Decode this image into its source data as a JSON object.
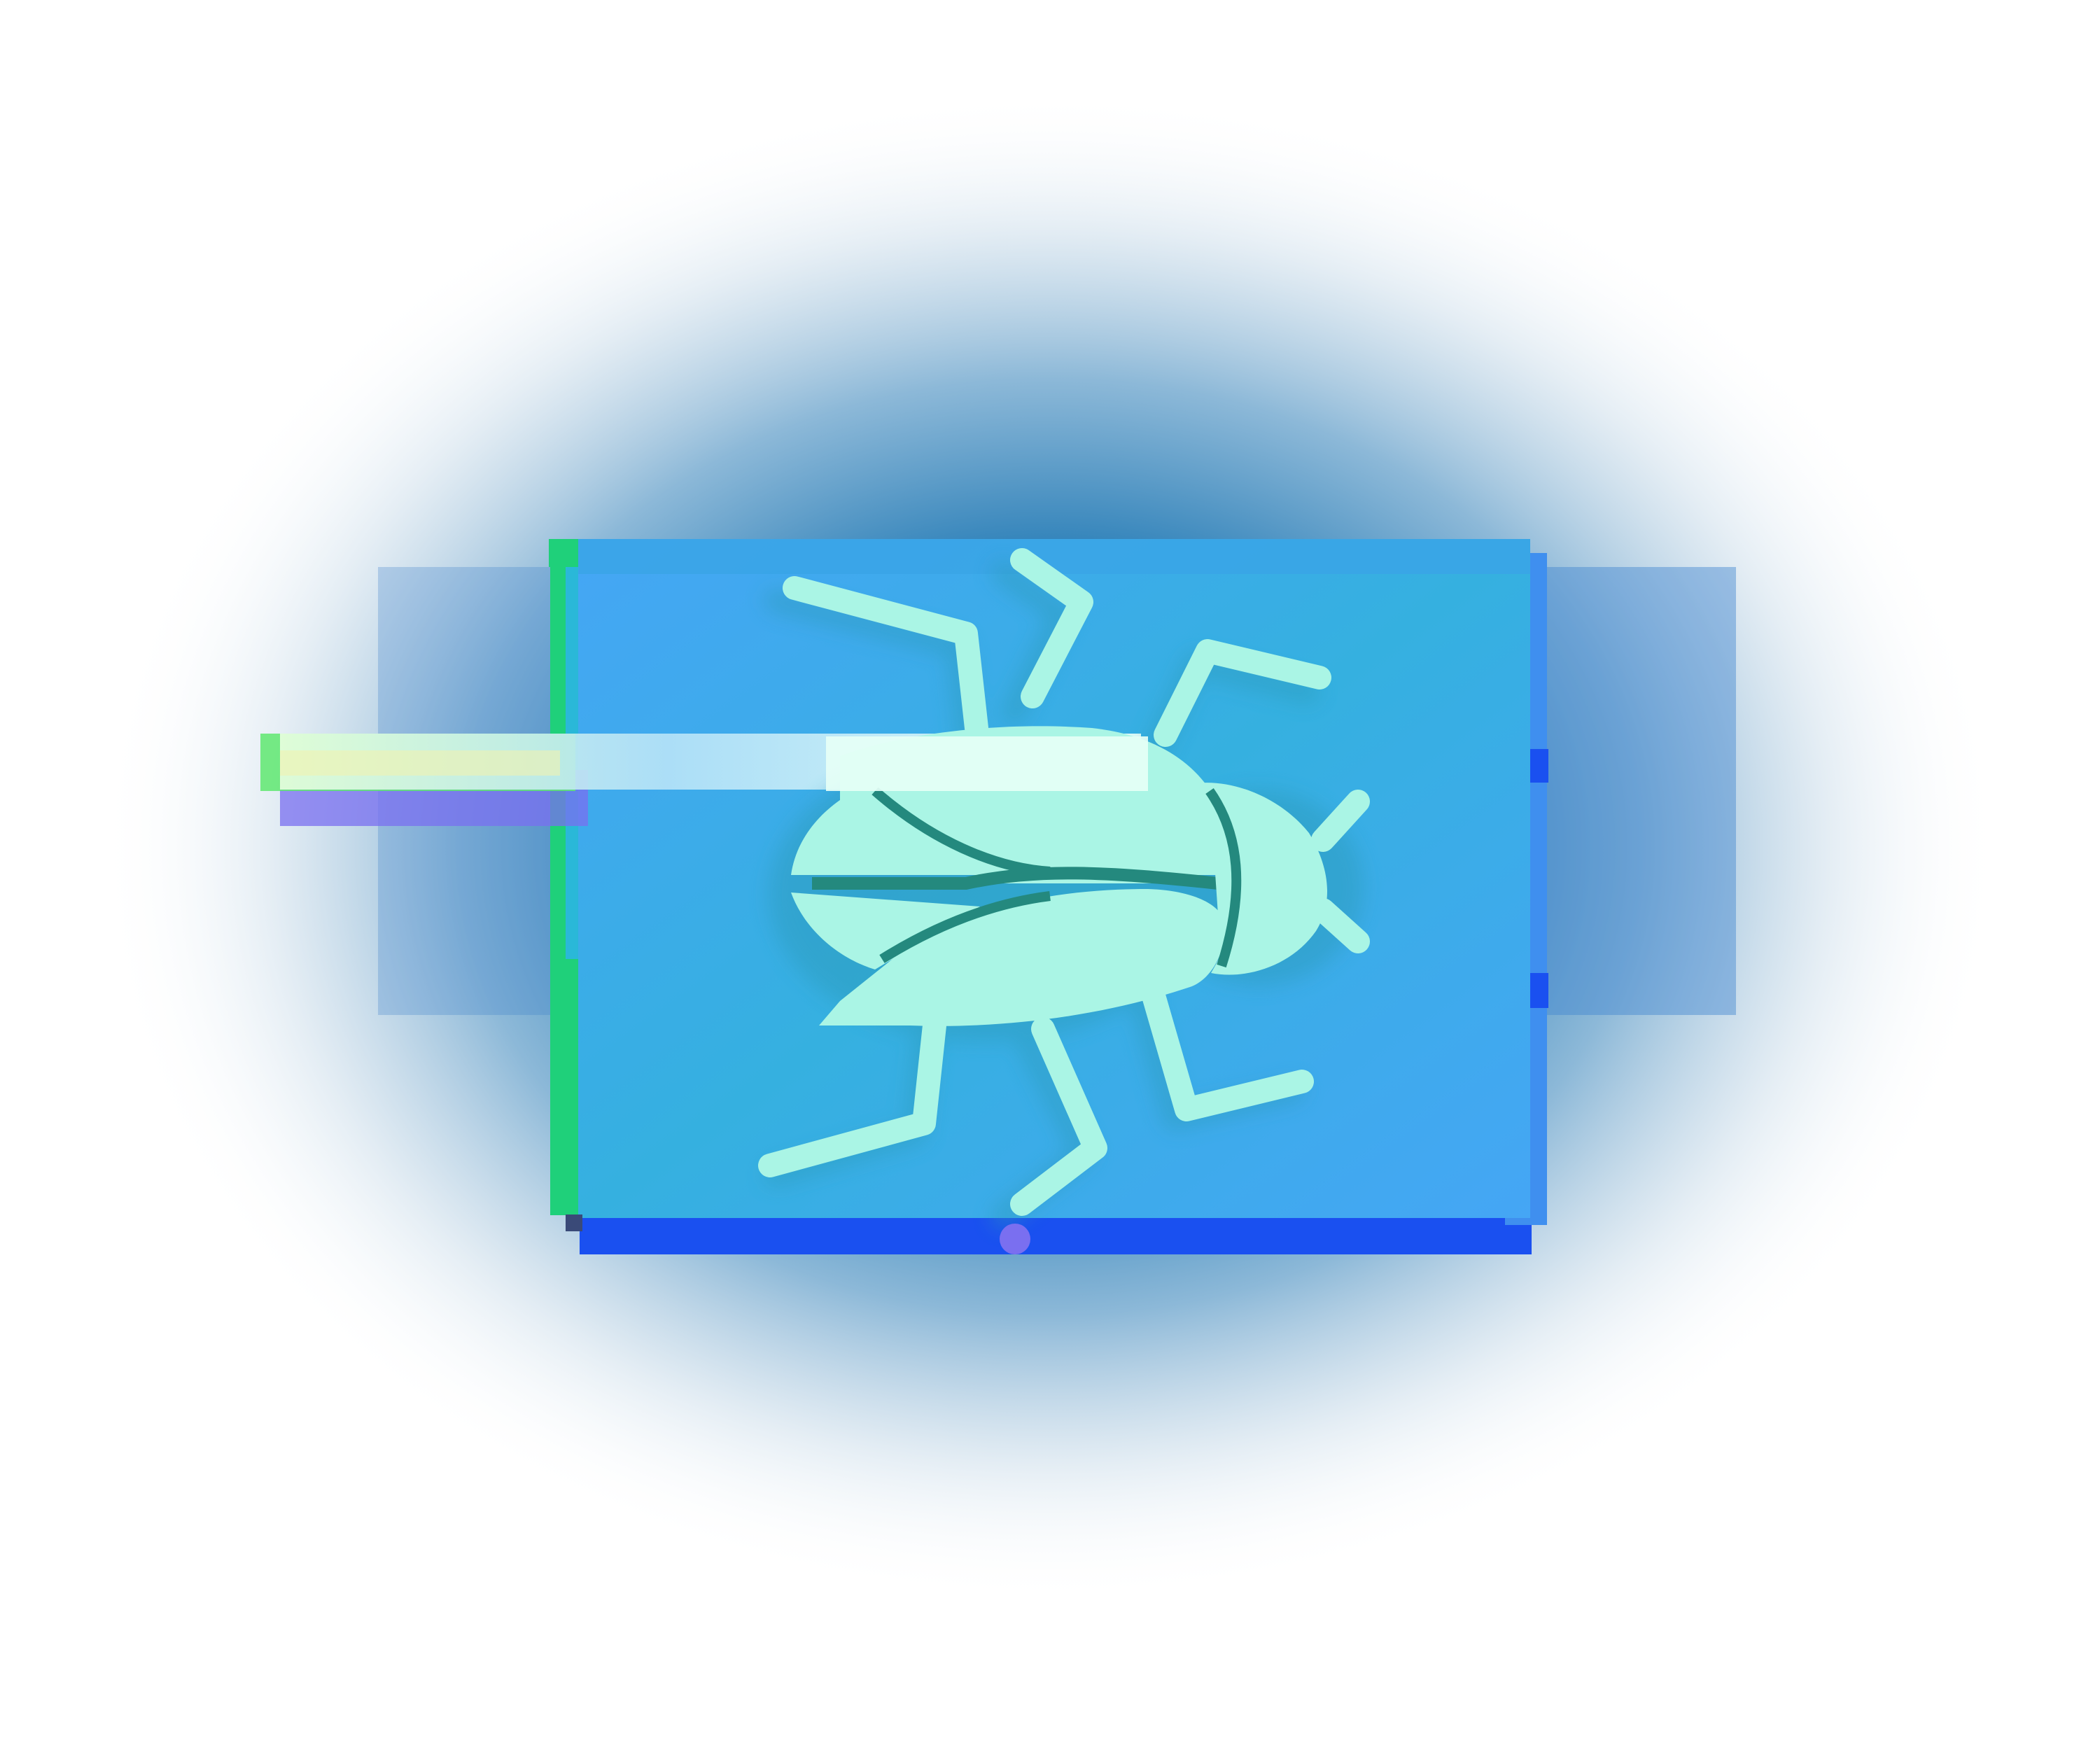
{
  "icon": {
    "name": "bug-icon",
    "style": "glitch",
    "colors": {
      "glow": "#1f78b4",
      "tile": "#3aa8ee",
      "tile_edge": "#3f8fef",
      "bottom_edge": "#1a50f0",
      "left_edge": "#1fd07a",
      "bug": "#aaf5e5",
      "bug_shadow": "#2a9ab8",
      "bug_seam": "#24897e",
      "glitch_bar": "#d6f6ff"
    }
  }
}
